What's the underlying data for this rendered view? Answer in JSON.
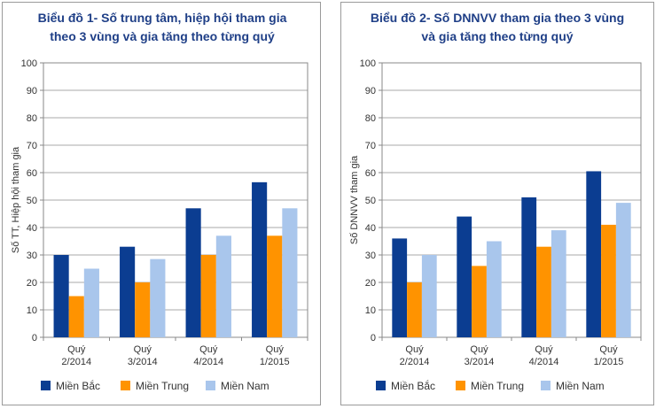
{
  "chart_data": [
    {
      "type": "bar",
      "title_lines": [
        "Biểu đồ 1- Số trung tâm, hiệp hội tham gia",
        "theo 3 vùng và gia tăng theo từng quý"
      ],
      "ylabel": "Số TT, Hiệp hội tham gia",
      "categories": [
        [
          "Quý",
          "2/2014"
        ],
        [
          "Quý",
          "3/2014"
        ],
        [
          "Quý",
          "4/2014"
        ],
        [
          "Quý",
          "1/2015"
        ]
      ],
      "ylim": [
        0,
        100
      ],
      "yticks": [
        "0",
        "10",
        "20",
        "30",
        "40",
        "50",
        "60",
        "70",
        "80",
        "90",
        "100"
      ],
      "grid": true,
      "legend_position": "bottom",
      "series": [
        {
          "name": "Miền Bắc",
          "color": "#0b3d91",
          "values": [
            30,
            33,
            47,
            56.5
          ]
        },
        {
          "name": "Miền Trung",
          "color": "#ff9300",
          "values": [
            15,
            20,
            30,
            37
          ]
        },
        {
          "name": "Miền Nam",
          "color": "#a9c6ec",
          "values": [
            25,
            28.5,
            37,
            47
          ]
        }
      ]
    },
    {
      "type": "bar",
      "title_lines": [
        "Biểu đồ 2- Số DNNVV tham gia theo 3 vùng",
        "và gia tăng theo từng quý"
      ],
      "ylabel": "Số DNNVV tham gia",
      "categories": [
        [
          "Quý",
          "2/2014"
        ],
        [
          "Quý",
          "3/2014"
        ],
        [
          "Quý",
          "4/2014"
        ],
        [
          "Quý",
          "1/2015"
        ]
      ],
      "ylim": [
        0,
        100
      ],
      "yticks": [
        "0",
        "10",
        "20",
        "30",
        "40",
        "50",
        "60",
        "70",
        "80",
        "90",
        "100"
      ],
      "grid": true,
      "legend_position": "bottom",
      "series": [
        {
          "name": "Miền Bắc",
          "color": "#0b3d91",
          "values": [
            36,
            44,
            51,
            60.5
          ]
        },
        {
          "name": "Miền Trung",
          "color": "#ff9300",
          "values": [
            20,
            26,
            33,
            41
          ]
        },
        {
          "name": "Miền Nam",
          "color": "#a9c6ec",
          "values": [
            30,
            35,
            39,
            49
          ]
        }
      ]
    }
  ]
}
